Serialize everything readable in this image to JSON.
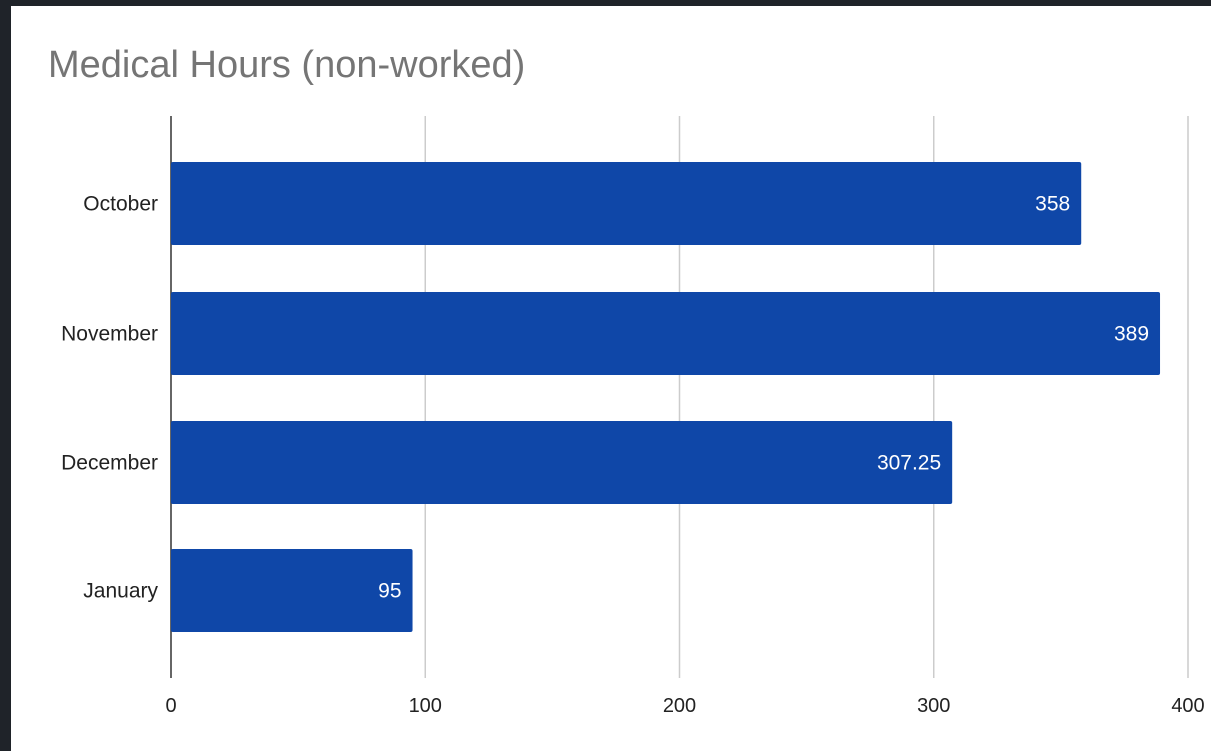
{
  "chart_data": {
    "type": "bar",
    "orientation": "horizontal",
    "title": "Medical Hours (non-worked)",
    "xlabel": "",
    "ylabel": "",
    "categories": [
      "October",
      "November",
      "December",
      "January"
    ],
    "values": [
      358,
      389,
      307.25,
      95
    ],
    "value_labels": [
      "358",
      "389",
      "307.25",
      "95"
    ],
    "xlim": [
      0,
      400
    ],
    "x_ticks": [
      0,
      100,
      200,
      300,
      400
    ],
    "x_tick_labels": [
      "0",
      "100",
      "200",
      "300",
      "400"
    ],
    "grid": true,
    "legend": "none",
    "bar_color": "#0f47a8"
  }
}
